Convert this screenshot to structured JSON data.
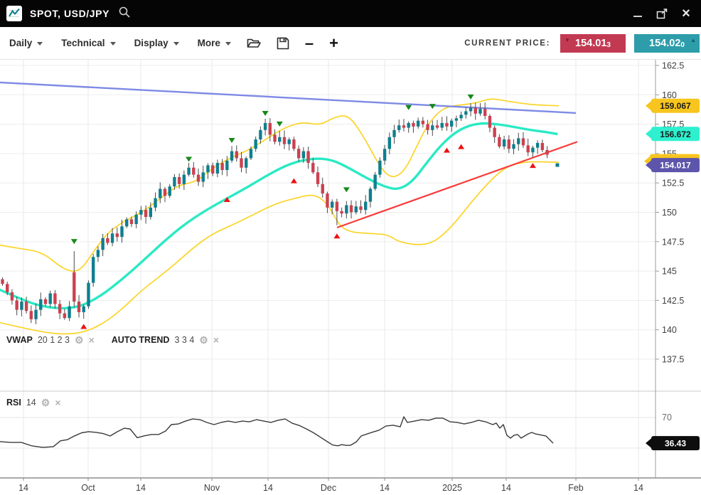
{
  "window": {
    "title": "SPOT, USD/JPY",
    "controls": {
      "minimize": "minimize",
      "popout": "open-in-new-window",
      "close": "close",
      "close_glyph": "×"
    }
  },
  "toolbar": {
    "menus": [
      {
        "label": "Daily"
      },
      {
        "label": "Technical"
      },
      {
        "label": "Display"
      },
      {
        "label": "More"
      }
    ],
    "icons": [
      "open-folder",
      "save",
      "zoom-out",
      "zoom-in"
    ],
    "zoom_out_glyph": "–",
    "zoom_in_glyph": "+",
    "current_price_label": "CURRENT PRICE:",
    "bid": {
      "value": "154.01",
      "sub": "3",
      "direction": "down",
      "arrow": "▼",
      "color": "#c23a52"
    },
    "ask": {
      "value": "154.02",
      "sub": "0",
      "direction": "up",
      "arrow": "▲",
      "color": "#2d9daa"
    }
  },
  "legends": {
    "vwap": {
      "name": "VWAP",
      "params": "20 1 2 3"
    },
    "autotrend": {
      "name": "AUTO TREND",
      "params": "3 3 4"
    },
    "rsi": {
      "name": "RSI",
      "params": "14"
    },
    "gear_glyph": "⚙",
    "close_glyph": "×"
  },
  "chart_data": {
    "type": "candlestick",
    "symbol": "USD/JPY",
    "interval": "Daily",
    "price_axis": {
      "ticks": [
        162.5,
        160,
        157.5,
        155,
        152.5,
        150,
        147.5,
        145,
        142.5,
        140,
        137.5
      ],
      "range": [
        137.5,
        162.5
      ]
    },
    "time_axis": {
      "labels": [
        [
          "14",
          33
        ],
        [
          "Oct",
          124
        ],
        [
          "14",
          198
        ],
        [
          "Nov",
          298
        ],
        [
          "14",
          377
        ],
        [
          "Dec",
          462
        ],
        [
          "14",
          541
        ],
        [
          "2025",
          636
        ],
        [
          "14",
          712
        ],
        [
          "Feb",
          810
        ],
        [
          "14",
          898
        ]
      ]
    },
    "candles": {
      "first_open": 144.3,
      "closes": [
        143.9,
        143.2,
        142.5,
        141.7,
        142.4,
        141.6,
        140.9,
        141.7,
        142.6,
        142.2,
        143.1,
        142.2,
        141.4,
        141.0,
        142.0,
        142.4,
        141.5,
        142.0,
        144.0,
        146.2,
        146.8,
        147.8,
        147.4,
        148.2,
        147.9,
        148.8,
        149.4,
        149.0,
        149.8,
        150.2,
        149.6,
        150.4,
        151.2,
        152.0,
        151.4,
        152.2,
        153.0,
        152.4,
        153.2,
        153.8,
        153.2,
        152.6,
        153.4,
        154.0,
        153.3,
        154.2,
        153.6,
        154.4,
        155.2,
        154.6,
        153.8,
        154.6,
        155.4,
        156.2,
        157.0,
        157.6,
        156.6,
        156.0,
        156.4,
        155.8,
        156.2,
        155.4,
        154.6,
        155.2,
        154.2,
        153.4,
        152.4,
        151.6,
        150.4,
        150.9,
        150.1,
        149.9,
        150.6,
        150.0,
        150.5,
        150.2,
        150.9,
        152.0,
        153.2,
        154.4,
        155.4,
        156.4,
        157.0,
        157.4,
        157.2,
        157.6,
        157.3,
        157.8,
        157.5,
        157.0,
        157.4,
        157.2,
        157.6,
        157.3,
        157.8,
        158.0,
        158.3,
        158.6,
        158.9,
        158.4,
        158.8,
        158.2,
        157.2,
        156.4,
        155.6,
        156.2,
        155.4,
        155.8,
        156.3,
        155.7,
        155.1,
        155.5,
        155.9,
        155.3,
        154.9
      ],
      "overrides": {
        "15": {
          "o": 144.9,
          "h": 146.7,
          "l": 141.9
        },
        "70": {
          "l": 148.9
        }
      },
      "up_color": "#0f7f8e",
      "down_color": "#cc4150"
    },
    "overlays": {
      "vwap": {
        "color": "#2aeac4",
        "points": [
          [
            0,
            143.4
          ],
          [
            26,
            142.7
          ],
          [
            52,
            142.1
          ],
          [
            80,
            141.8
          ],
          [
            110,
            141.9
          ],
          [
            140,
            142.8
          ],
          [
            170,
            144.2
          ],
          [
            200,
            145.8
          ],
          [
            230,
            147.5
          ],
          [
            260,
            149.0
          ],
          [
            290,
            150.2
          ],
          [
            320,
            151.2
          ],
          [
            350,
            152.2
          ],
          [
            380,
            153.3
          ],
          [
            410,
            154.2
          ],
          [
            440,
            154.6
          ],
          [
            466,
            154.5
          ],
          [
            490,
            153.8
          ],
          [
            516,
            152.9
          ],
          [
            540,
            152.2
          ],
          [
            560,
            151.9
          ],
          [
            580,
            152.6
          ],
          [
            600,
            154.2
          ],
          [
            620,
            155.7
          ],
          [
            640,
            156.8
          ],
          [
            660,
            157.4
          ],
          [
            680,
            157.6
          ],
          [
            700,
            157.5
          ],
          [
            720,
            157.3
          ],
          [
            746,
            157.0
          ],
          [
            766,
            156.85
          ],
          [
            783,
            156.67
          ]
        ]
      },
      "bb_upper": {
        "color": "#fbd428",
        "points": [
          [
            0,
            147.2
          ],
          [
            30,
            146.9
          ],
          [
            60,
            146.6
          ],
          [
            90,
            145.1
          ],
          [
            112,
            144.9
          ],
          [
            132,
            146.7
          ],
          [
            152,
            148.3
          ],
          [
            176,
            149.3
          ],
          [
            200,
            150.0
          ],
          [
            226,
            151.2
          ],
          [
            250,
            152.3
          ],
          [
            276,
            152.6
          ],
          [
            300,
            153.8
          ],
          [
            326,
            154.7
          ],
          [
            350,
            155.3
          ],
          [
            376,
            156.3
          ],
          [
            400,
            157.2
          ],
          [
            426,
            157.7
          ],
          [
            450,
            157.4
          ],
          [
            470,
            158.1
          ],
          [
            490,
            158.3
          ],
          [
            510,
            156.6
          ],
          [
            526,
            154.8
          ],
          [
            540,
            153.4
          ],
          [
            554,
            152.9
          ],
          [
            570,
            153.6
          ],
          [
            586,
            155.6
          ],
          [
            600,
            157.3
          ],
          [
            616,
            158.5
          ],
          [
            630,
            159.0
          ],
          [
            650,
            159.15
          ],
          [
            670,
            159.3
          ],
          [
            690,
            159.7
          ],
          [
            710,
            159.5
          ],
          [
            730,
            159.3
          ],
          [
            752,
            159.15
          ],
          [
            770,
            159.1
          ],
          [
            786,
            159.07
          ]
        ]
      },
      "bb_lower": {
        "color": "#fbd428",
        "points": [
          [
            0,
            140.6
          ],
          [
            30,
            140.2
          ],
          [
            60,
            139.8
          ],
          [
            90,
            139.6
          ],
          [
            120,
            139.8
          ],
          [
            150,
            140.7
          ],
          [
            176,
            142.0
          ],
          [
            200,
            143.4
          ],
          [
            226,
            144.6
          ],
          [
            250,
            145.8
          ],
          [
            276,
            147.2
          ],
          [
            300,
            148.2
          ],
          [
            326,
            148.9
          ],
          [
            350,
            149.6
          ],
          [
            376,
            150.4
          ],
          [
            396,
            150.9
          ],
          [
            416,
            151.2
          ],
          [
            436,
            151.5
          ],
          [
            450,
            151.3
          ],
          [
            464,
            150.4
          ],
          [
            478,
            148.8
          ],
          [
            494,
            148.3
          ],
          [
            520,
            148.2
          ],
          [
            546,
            148.1
          ],
          [
            560,
            147.5
          ],
          [
            586,
            147.2
          ],
          [
            610,
            147.4
          ],
          [
            636,
            148.8
          ],
          [
            662,
            150.8
          ],
          [
            688,
            152.6
          ],
          [
            712,
            153.9
          ],
          [
            738,
            154.3
          ],
          [
            760,
            154.3
          ],
          [
            786,
            154.25
          ]
        ]
      },
      "trend_down": {
        "color": "#7d8ae4",
        "x1": 0,
        "p1": 161.05,
        "x2": 810,
        "p2": 158.45
      },
      "trend_up": {
        "color": "#f93b3b",
        "x1": 474,
        "p1": 148.7,
        "x2": 812,
        "p2": 156.0
      }
    },
    "markers": {
      "sell_color": "#168a18",
      "buy_color": "#ec1212",
      "sell": [
        [
          15,
          147.3
        ],
        [
          39,
          154.3
        ],
        [
          48,
          155.9
        ],
        [
          55,
          158.2
        ],
        [
          58,
          157.3
        ],
        [
          72,
          151.7
        ],
        [
          85,
          158.7
        ],
        [
          90,
          158.8
        ],
        [
          98,
          159.6
        ]
      ],
      "buy": [
        [
          17,
          140.5
        ],
        [
          47,
          151.3
        ],
        [
          61,
          152.9
        ],
        [
          70,
          148.2
        ],
        [
          93,
          155.5
        ],
        [
          96,
          155.8
        ],
        [
          111,
          154.2
        ]
      ]
    },
    "last_price_dot": {
      "x": 784,
      "price": 154.02,
      "color": "#0f7f8e"
    },
    "price_tags": [
      {
        "text": "",
        "bg": "#f7c51e",
        "fg": "#222",
        "price": 154.35,
        "note": "lower-band tag mostly hidden"
      },
      {
        "text": "159.067",
        "bg": "#f7c51e",
        "fg": "#1a1a1a",
        "price": 159.067
      },
      {
        "text": "156.672",
        "bg": "#2ef0cf",
        "fg": "#1a1a1a",
        "price": 156.672
      },
      {
        "text": "154.017",
        "bg": "#5d55ab",
        "fg": "#ffffff",
        "price": 154.017
      }
    ],
    "rsi": {
      "visible_tick": "70",
      "gridlines": [
        70,
        30
      ],
      "tag": {
        "text": "36.43",
        "bg": "#0d0d0d",
        "fg": "#ffffff",
        "value": 36.43
      },
      "color": "#3a3a3a",
      "series": [
        [
          0,
          38.4
        ],
        [
          15,
          37.4
        ],
        [
          30,
          37.4
        ],
        [
          45,
          32.8
        ],
        [
          60,
          30.9
        ],
        [
          75,
          31.8
        ],
        [
          85,
          39.5
        ],
        [
          95,
          41.0
        ],
        [
          105,
          46.0
        ],
        [
          115,
          50.0
        ],
        [
          125,
          51.4
        ],
        [
          135,
          50.5
        ],
        [
          145,
          49.0
        ],
        [
          155,
          45.8
        ],
        [
          165,
          51.4
        ],
        [
          175,
          56.0
        ],
        [
          183,
          55.0
        ],
        [
          193,
          43.5
        ],
        [
          203,
          46.0
        ],
        [
          213,
          47.7
        ],
        [
          223,
          47.7
        ],
        [
          233,
          52.3
        ],
        [
          241,
          60.7
        ],
        [
          251,
          61.6
        ],
        [
          261,
          65.3
        ],
        [
          271,
          68.1
        ],
        [
          281,
          67.2
        ],
        [
          291,
          63.5
        ],
        [
          301,
          60.7
        ],
        [
          311,
          63.5
        ],
        [
          321,
          65.3
        ],
        [
          331,
          63.5
        ],
        [
          341,
          65.3
        ],
        [
          351,
          64.4
        ],
        [
          361,
          67.2
        ],
        [
          371,
          65.3
        ],
        [
          381,
          63.5
        ],
        [
          391,
          66.3
        ],
        [
          401,
          68.1
        ],
        [
          411,
          62.5
        ],
        [
          421,
          59.5
        ],
        [
          431,
          55.0
        ],
        [
          441,
          50.0
        ],
        [
          451,
          44.0
        ],
        [
          461,
          38.0
        ],
        [
          468,
          34.0
        ],
        [
          475,
          33.0
        ],
        [
          481,
          34.5
        ],
        [
          487,
          33.5
        ],
        [
          493,
          33.6
        ],
        [
          501,
          38.0
        ],
        [
          508,
          45.8
        ],
        [
          523,
          50.5
        ],
        [
          533,
          53.3
        ],
        [
          543,
          58.9
        ],
        [
          553,
          59.8
        ],
        [
          563,
          57.9
        ],
        [
          568,
          70.9
        ],
        [
          573,
          63.5
        ],
        [
          583,
          65.3
        ],
        [
          593,
          67.2
        ],
        [
          603,
          66.3
        ],
        [
          613,
          69.1
        ],
        [
          623,
          69.1
        ],
        [
          633,
          64.4
        ],
        [
          643,
          63.5
        ],
        [
          653,
          61.6
        ],
        [
          663,
          63.5
        ],
        [
          673,
          66.3
        ],
        [
          683,
          64.4
        ],
        [
          693,
          60.7
        ],
        [
          698,
          62.6
        ],
        [
          703,
          56.0
        ],
        [
          708,
          60.7
        ],
        [
          713,
          46.7
        ],
        [
          718,
          43.0
        ],
        [
          723,
          46.7
        ],
        [
          728,
          47.7
        ],
        [
          733,
          43.0
        ],
        [
          743,
          48.6
        ],
        [
          748,
          50.5
        ],
        [
          753,
          48.6
        ],
        [
          763,
          46.7
        ],
        [
          768,
          45.8
        ],
        [
          773,
          41.2
        ],
        [
          778,
          36.43
        ]
      ]
    }
  }
}
